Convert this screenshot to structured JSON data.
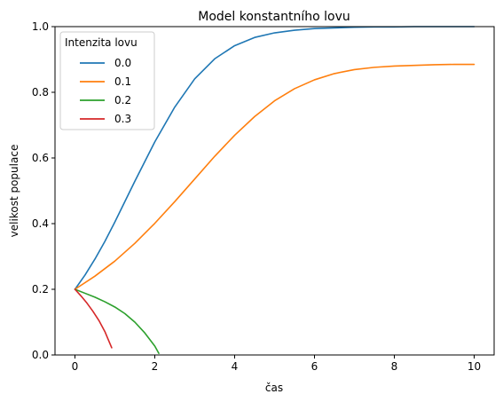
{
  "chart_data": {
    "type": "line",
    "title": "Model konstantního lovu",
    "xlabel": "čas",
    "ylabel": "velikost populace",
    "xlim": [
      -0.5,
      10.5
    ],
    "ylim": [
      0.0,
      1.0
    ],
    "xticks": [
      0,
      2,
      4,
      6,
      8,
      10
    ],
    "yticks": [
      0.0,
      0.2,
      0.4,
      0.6,
      0.8,
      1.0
    ],
    "xtick_labels": [
      "0",
      "2",
      "4",
      "6",
      "8",
      "10"
    ],
    "ytick_labels": [
      "0.0",
      "0.2",
      "0.4",
      "0.6",
      "0.8",
      "1.0"
    ],
    "grid": false,
    "legend": {
      "title": "Intenzita lovu",
      "position": "top-left"
    },
    "series": [
      {
        "name": "0.0",
        "color": "#1f77b4",
        "x": [
          0,
          0.25,
          0.5,
          0.75,
          1.0,
          1.5,
          2.0,
          2.5,
          3.0,
          3.5,
          4.0,
          4.5,
          5.0,
          5.5,
          6.0,
          6.5,
          7.0,
          7.5,
          8.0,
          8.5,
          9.0,
          9.5,
          10.0
        ],
        "y": [
          0.2,
          0.243,
          0.292,
          0.346,
          0.405,
          0.529,
          0.649,
          0.755,
          0.841,
          0.902,
          0.942,
          0.967,
          0.981,
          0.989,
          0.994,
          0.996,
          0.998,
          0.999,
          0.999,
          1.0,
          1.0,
          1.0,
          1.0
        ]
      },
      {
        "name": "0.1",
        "color": "#ff7f0e",
        "x": [
          0,
          0.5,
          1.0,
          1.5,
          2.0,
          2.5,
          3.0,
          3.5,
          4.0,
          4.5,
          5.0,
          5.5,
          6.0,
          6.5,
          7.0,
          7.5,
          8.0,
          8.5,
          9.0,
          9.5,
          10.0
        ],
        "y": [
          0.2,
          0.24,
          0.286,
          0.34,
          0.401,
          0.467,
          0.536,
          0.605,
          0.669,
          0.726,
          0.774,
          0.811,
          0.838,
          0.857,
          0.869,
          0.876,
          0.88,
          0.882,
          0.884,
          0.885,
          0.885
        ]
      },
      {
        "name": "0.2",
        "color": "#2ca02c",
        "x": [
          0,
          0.25,
          0.5,
          0.75,
          1.0,
          1.25,
          1.5,
          1.75,
          2.0,
          2.1
        ],
        "y": [
          0.2,
          0.188,
          0.176,
          0.162,
          0.146,
          0.126,
          0.1,
          0.067,
          0.027,
          0.005
        ]
      },
      {
        "name": "0.3",
        "color": "#d62728",
        "x": [
          0,
          0.15,
          0.3,
          0.45,
          0.6,
          0.75,
          0.92
        ],
        "y": [
          0.2,
          0.18,
          0.158,
          0.133,
          0.105,
          0.071,
          0.022
        ]
      }
    ]
  }
}
